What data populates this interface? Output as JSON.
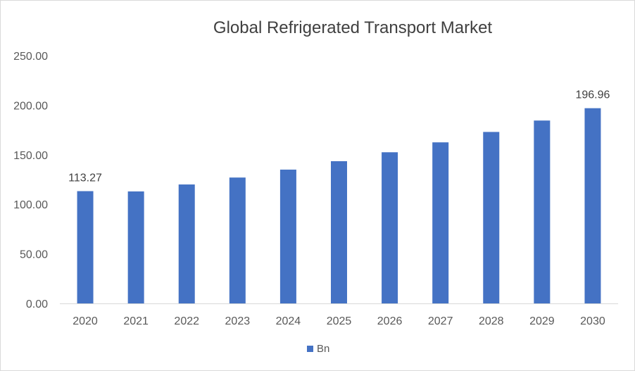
{
  "chart_data": {
    "type": "bar",
    "title": "Global Refrigerated Transport Market",
    "categories": [
      "2020",
      "2021",
      "2022",
      "2023",
      "2024",
      "2025",
      "2026",
      "2027",
      "2028",
      "2029",
      "2030"
    ],
    "series": [
      {
        "name": "Bn",
        "color": "#4472C4",
        "values": [
          113.27,
          113.0,
          120.0,
          127.0,
          135.0,
          143.5,
          152.5,
          162.5,
          173.0,
          184.5,
          196.96
        ]
      }
    ],
    "y_ticks": [
      "0.00",
      "50.00",
      "100.00",
      "150.00",
      "200.00",
      "250.00"
    ],
    "ylim": [
      0,
      250
    ],
    "data_labels": [
      {
        "index": 0,
        "text": "113.27"
      },
      {
        "index": 10,
        "text": "196.96"
      }
    ],
    "legend": {
      "label": "Bn",
      "placement": "bottom"
    },
    "grid": false
  }
}
